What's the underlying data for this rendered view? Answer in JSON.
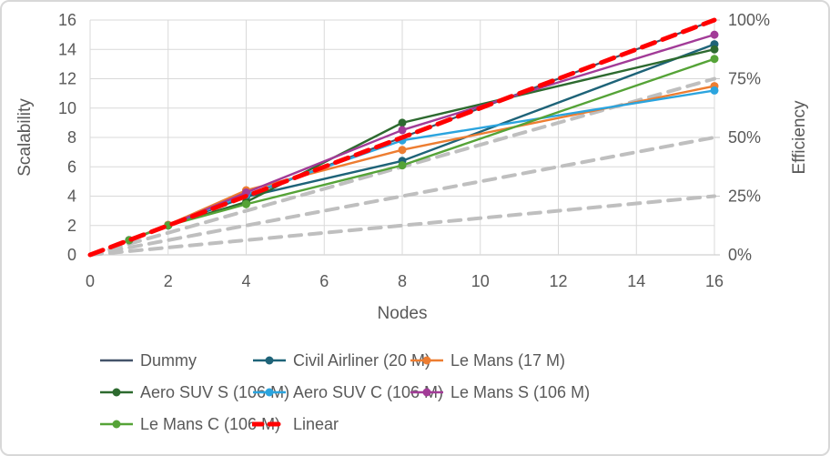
{
  "window": {
    "background": "#FFFFFF",
    "border_color": "#D8D8D8"
  },
  "chart_data": {
    "type": "line",
    "title": "",
    "xlabel": "Nodes",
    "ylabel_left": "Scalability",
    "ylabel_right": "Efficiency",
    "xlim": [
      0,
      16
    ],
    "ylim_left": [
      0,
      16
    ],
    "ylim_right_percent": [
      0,
      100
    ],
    "grid": true,
    "grid_color": "#D9D9D9",
    "axis_line_color": "#C6C6C6",
    "tick_text_color": "#595959",
    "x_ticks": [
      0,
      2,
      4,
      6,
      8,
      10,
      12,
      14,
      16
    ],
    "y_ticks_left": [
      0,
      2,
      4,
      6,
      8,
      10,
      12,
      14,
      16
    ],
    "y_ticks_right": [
      {
        "percent": 0,
        "label": "0%"
      },
      {
        "percent": 25,
        "label": "25%"
      },
      {
        "percent": 50,
        "label": "50%"
      },
      {
        "percent": 75,
        "label": "75%"
      },
      {
        "percent": 100,
        "label": "100%"
      }
    ],
    "series": [
      {
        "name": "Dummy",
        "color": "#44546A",
        "x": [
          1,
          2,
          4,
          8,
          16
        ],
        "y": [
          1,
          2,
          4,
          8,
          16
        ],
        "marker": false,
        "width": 2.2,
        "dash": null
      },
      {
        "name": "Civil Airliner (20 M)",
        "color": "#1E6378",
        "x": [
          1,
          2,
          4,
          8,
          16
        ],
        "y": [
          1,
          2,
          3.95,
          6.4,
          14.35
        ],
        "marker": true,
        "width": 2.4,
        "dash": null
      },
      {
        "name": "Le Mans (17 M)",
        "color": "#ED7D31",
        "x": [
          1,
          2,
          4,
          8,
          16
        ],
        "y": [
          1,
          2.05,
          4.4,
          7.15,
          11.5
        ],
        "marker": true,
        "width": 2.4,
        "dash": null
      },
      {
        "name": "Aero SUV S (106 M)",
        "color": "#2D6A2F",
        "x": [
          1,
          2,
          4,
          8,
          16
        ],
        "y": [
          1,
          2,
          3.6,
          9,
          14
        ],
        "marker": true,
        "width": 2.4,
        "dash": null
      },
      {
        "name": "Aero SUV C (106 M)",
        "color": "#2BA4DE",
        "x": [
          1,
          2,
          4,
          8,
          16
        ],
        "y": [
          1,
          2,
          4.1,
          7.8,
          11.2
        ],
        "marker": true,
        "width": 2.4,
        "dash": null
      },
      {
        "name": "Le Mans S (106 M)",
        "color": "#A23B97",
        "x": [
          1,
          2,
          4,
          8,
          16
        ],
        "y": [
          1,
          2,
          4.25,
          8.5,
          15
        ],
        "marker": true,
        "width": 2.4,
        "dash": null
      },
      {
        "name": "Le Mans C (106 M)",
        "color": "#55A337",
        "x": [
          1,
          2,
          4,
          8,
          16
        ],
        "y": [
          1,
          2,
          3.45,
          6.1,
          13.35
        ],
        "marker": true,
        "width": 2.4,
        "dash": null
      },
      {
        "name": "Linear",
        "color": "#FF0000",
        "x": [
          0,
          16
        ],
        "y": [
          0,
          16
        ],
        "marker": false,
        "width": 5,
        "dash": [
          15,
          9
        ]
      }
    ],
    "efficiency_guides": {
      "color": "#BFBFBF",
      "width": 4,
      "dash": [
        13,
        9
      ],
      "lines": [
        {
          "name": "75%-efficiency-guide",
          "from": [
            0,
            0
          ],
          "to": [
            16,
            12
          ]
        },
        {
          "name": "50%-efficiency-guide",
          "from": [
            0,
            0
          ],
          "to": [
            16,
            8
          ]
        },
        {
          "name": "25%-efficiency-guide",
          "from": [
            0,
            0
          ],
          "to": [
            16,
            4
          ]
        }
      ]
    },
    "legend_position": "bottom"
  },
  "legend": {
    "items": [
      {
        "label": "Dummy"
      },
      {
        "label": "Civil Airliner (20 M)"
      },
      {
        "label": "Le Mans (17 M)"
      },
      {
        "label": "Aero SUV S (106 M)"
      },
      {
        "label": "Aero SUV C (106 M)"
      },
      {
        "label": "Le Mans S (106 M)"
      },
      {
        "label": "Le Mans C (106 M)"
      },
      {
        "label": "Linear"
      }
    ]
  }
}
